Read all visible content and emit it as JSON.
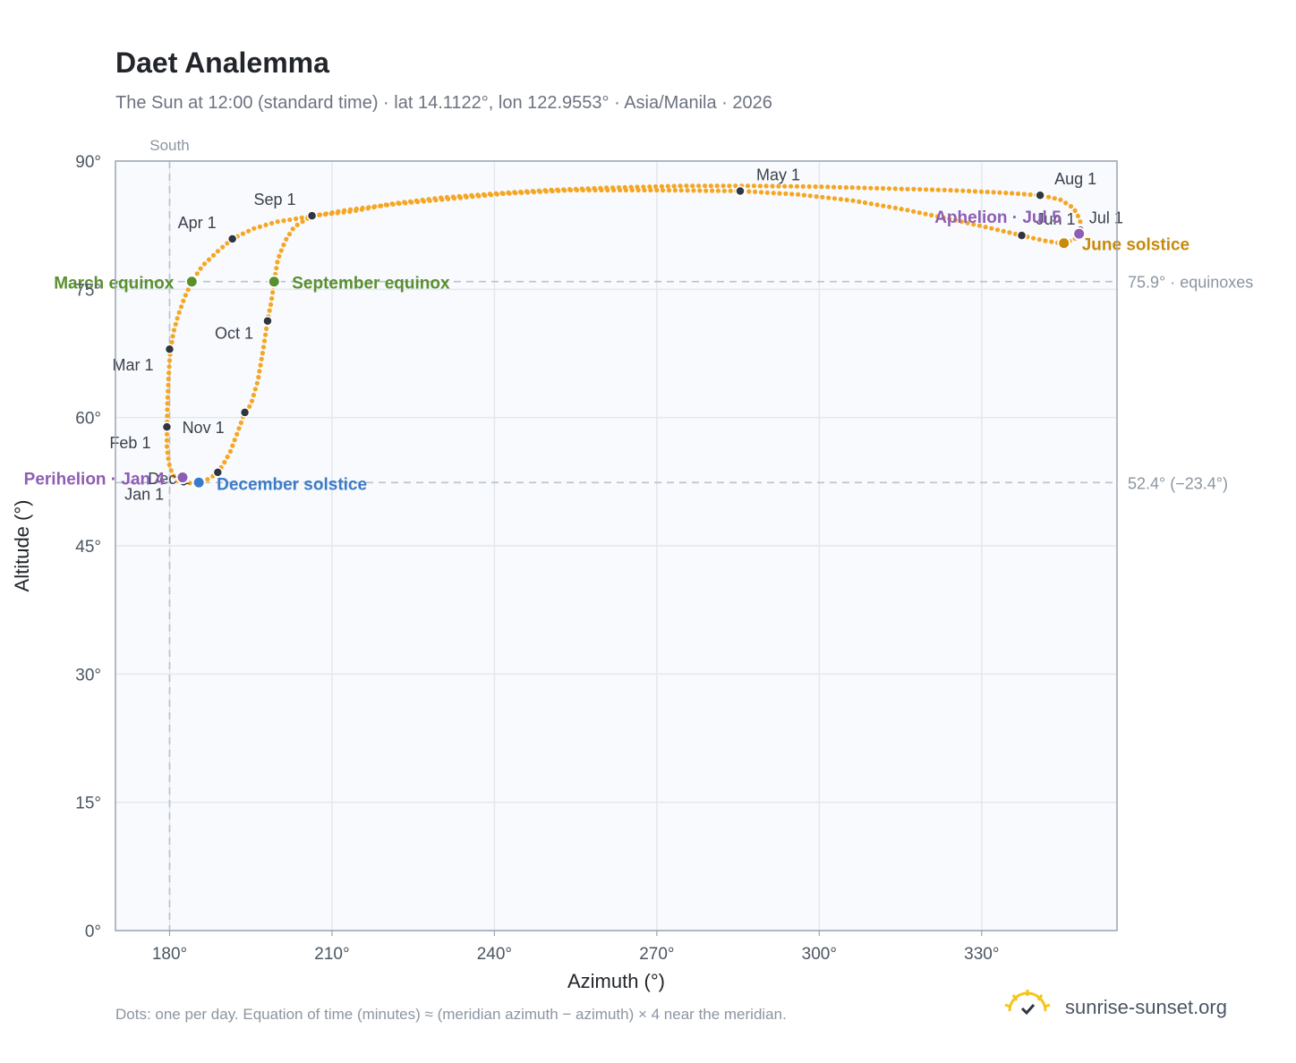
{
  "header": {
    "title": "Daet Analemma",
    "subtitle": "The Sun at 12:00 (standard time) · lat 14.1122°, lon 122.9553° · Asia/Manila · 2026"
  },
  "footer": {
    "note": "Dots: one per day. Equation of time (minutes) ≈ (meridian azimuth − azimuth) × 4 near the meridian.",
    "brand": "sunrise-sunset.org"
  },
  "colors": {
    "curve": "#f5a623",
    "month_dot": "#2f3640",
    "equinox": "#5a8f2e",
    "december_solstice": "#3a7bc8",
    "june_solstice": "#c78a0a",
    "apsis": "#8e5db5",
    "reference_line": "#b8c2cf",
    "plot_bg": "#f8fafd"
  },
  "chart_data": {
    "type": "scatter",
    "xlabel": "Azimuth (°)",
    "ylabel": "Altitude (°)",
    "xlim": [
      170,
      355
    ],
    "ylim": [
      0,
      90
    ],
    "xticks": [
      180,
      210,
      240,
      270,
      300,
      330
    ],
    "xtick_labels": [
      "180°",
      "210°",
      "240°",
      "270°",
      "300°",
      "330°"
    ],
    "yticks": [
      0,
      15,
      30,
      45,
      60,
      75,
      90
    ],
    "ytick_labels": [
      "0°",
      "15°",
      "30°",
      "45°",
      "60°",
      "75°",
      "90°"
    ],
    "grid": true,
    "meridian": {
      "azimuth": 180,
      "label": "South"
    },
    "reference_lines": [
      {
        "altitude": 75.9,
        "label": "75.9° · equinoxes"
      },
      {
        "altitude": 52.4,
        "label": "52.4° (−23.4°)"
      }
    ],
    "analemma": [
      [
        181.5,
        52.6
      ],
      [
        180.9,
        53.0
      ],
      [
        180.4,
        53.6
      ],
      [
        180.0,
        54.4
      ],
      [
        179.7,
        55.4
      ],
      [
        179.5,
        56.6
      ],
      [
        179.5,
        58.9
      ],
      [
        179.6,
        61.5
      ],
      [
        179.8,
        64.5
      ],
      [
        180.1,
        67.6
      ],
      [
        180.7,
        69.9
      ],
      [
        181.6,
        72.0
      ],
      [
        182.8,
        74.1
      ],
      [
        184.1,
        75.9
      ],
      [
        186.0,
        77.7
      ],
      [
        188.8,
        79.4
      ],
      [
        191.6,
        80.9
      ],
      [
        195.5,
        82.1
      ],
      [
        199.8,
        82.9
      ],
      [
        205.8,
        83.5
      ],
      [
        213.0,
        84.3
      ],
      [
        222.0,
        85.0
      ],
      [
        232.0,
        85.6
      ],
      [
        242.0,
        86.2
      ],
      [
        254.0,
        86.6
      ],
      [
        270.0,
        86.6
      ],
      [
        285.4,
        86.5
      ],
      [
        296.0,
        86.1
      ],
      [
        306.0,
        85.4
      ],
      [
        316.0,
        84.3
      ],
      [
        325.0,
        83.1
      ],
      [
        332.0,
        82.1
      ],
      [
        337.4,
        81.3
      ],
      [
        341.5,
        80.7
      ],
      [
        344.4,
        80.4
      ],
      [
        346.2,
        80.6
      ],
      [
        347.4,
        81.0
      ],
      [
        348.2,
        81.9
      ],
      [
        348.2,
        83.1
      ],
      [
        347.0,
        84.5
      ],
      [
        344.5,
        85.5
      ],
      [
        340.8,
        86.0
      ],
      [
        334.0,
        86.3
      ],
      [
        324.0,
        86.6
      ],
      [
        312.0,
        86.8
      ],
      [
        300.0,
        87.0
      ],
      [
        288.0,
        87.1
      ],
      [
        275.0,
        87.1
      ],
      [
        262.0,
        86.9
      ],
      [
        250.0,
        86.6
      ],
      [
        240.0,
        86.2
      ],
      [
        230.0,
        85.7
      ],
      [
        221.0,
        85.0
      ],
      [
        213.5,
        84.1
      ],
      [
        206.3,
        83.6
      ],
      [
        203.0,
        82.3
      ],
      [
        201.3,
        80.6
      ],
      [
        200.0,
        78.5
      ],
      [
        199.3,
        75.9
      ],
      [
        198.8,
        73.6
      ],
      [
        198.1,
        71.3
      ],
      [
        197.3,
        68.0
      ],
      [
        196.3,
        64.3
      ],
      [
        195.0,
        61.5
      ],
      [
        193.9,
        60.6
      ],
      [
        192.4,
        58.0
      ],
      [
        191.2,
        56.0
      ],
      [
        189.9,
        54.5
      ],
      [
        188.9,
        53.6
      ],
      [
        187.7,
        53.0
      ],
      [
        186.5,
        52.6
      ],
      [
        185.4,
        52.4
      ],
      [
        184.3,
        52.3
      ],
      [
        183.2,
        52.4
      ],
      [
        181.5,
        52.6
      ]
    ],
    "month_markers": [
      {
        "label": "Jan 1",
        "az": 182.6,
        "alt": 52.5
      },
      {
        "label": "Feb 1",
        "az": 179.5,
        "alt": 58.9
      },
      {
        "label": "Mar 1",
        "az": 180.0,
        "alt": 68.0
      },
      {
        "label": "Apr 1",
        "az": 191.6,
        "alt": 80.9
      },
      {
        "label": "May 1",
        "az": 285.4,
        "alt": 86.5
      },
      {
        "label": "Jun 1",
        "az": 337.4,
        "alt": 81.3
      },
      {
        "label": "Jul 1",
        "az": 348.2,
        "alt": 81.9
      },
      {
        "label": "Aug 1",
        "az": 340.8,
        "alt": 86.0
      },
      {
        "label": "Sep 1",
        "az": 206.3,
        "alt": 83.6
      },
      {
        "label": "Oct 1",
        "az": 198.1,
        "alt": 71.3
      },
      {
        "label": "Nov 1",
        "az": 193.9,
        "alt": 60.6
      },
      {
        "label": "Dec 1",
        "az": 188.9,
        "alt": 53.6
      }
    ],
    "events": [
      {
        "label": "March equinox",
        "az": 184.1,
        "alt": 75.9,
        "kind": "equinox"
      },
      {
        "label": "September equinox",
        "az": 199.3,
        "alt": 75.9,
        "kind": "equinox"
      },
      {
        "label": "December solstice",
        "az": 185.4,
        "alt": 52.4,
        "kind": "december_solstice"
      },
      {
        "label": "June solstice",
        "az": 345.2,
        "alt": 80.4,
        "kind": "june_solstice"
      },
      {
        "label": "Perihelion · Jan 4",
        "az": 182.4,
        "alt": 53.0,
        "kind": "apsis"
      },
      {
        "label": "Aphelion · Jul 5",
        "az": 348.0,
        "alt": 81.5,
        "kind": "apsis"
      }
    ]
  }
}
